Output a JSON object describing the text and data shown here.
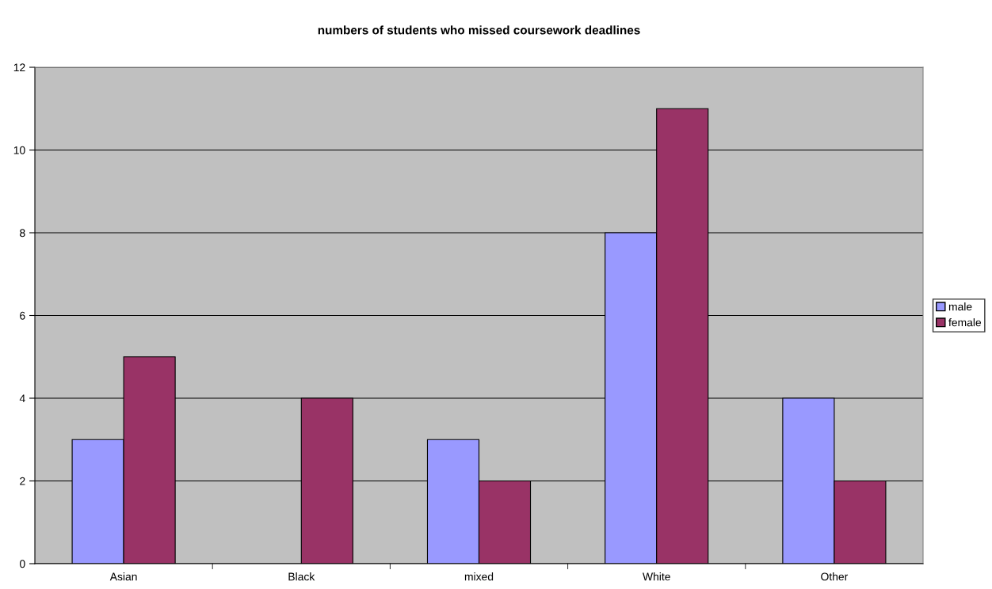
{
  "chart_data": {
    "type": "bar",
    "title": "numbers of students who missed coursework deadlines",
    "categories": [
      "Asian",
      "Black",
      "mixed",
      "White",
      "Other"
    ],
    "series": [
      {
        "name": "male",
        "color": "#9999ff",
        "values": [
          3,
          null,
          3,
          8,
          4
        ]
      },
      {
        "name": "female",
        "color": "#993366",
        "values": [
          5,
          4,
          2,
          11,
          2
        ]
      }
    ],
    "ylim": [
      0,
      12
    ],
    "yticks": [
      0,
      2,
      4,
      6,
      8,
      10,
      12
    ],
    "grid": "y",
    "legend": "right"
  }
}
